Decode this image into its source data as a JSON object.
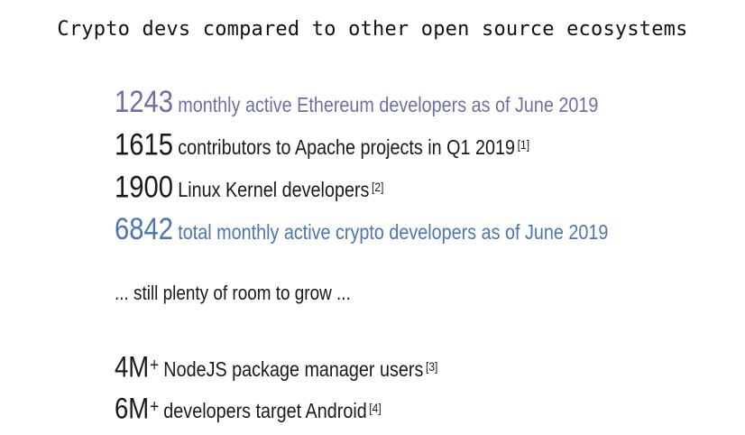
{
  "title": "Crypto devs compared to other open source ecosystems",
  "stats": [
    {
      "number": "1243",
      "text": "monthly active Ethereum developers as of June 2019",
      "ref": "",
      "color": "#6e6fa6"
    },
    {
      "number": "1615",
      "text": "contributors to Apache projects in Q1 2019",
      "ref": "[1]",
      "color": "#1a1a1a"
    },
    {
      "number": "1900",
      "text": "Linux Kernel developers",
      "ref": "[2]",
      "color": "#1a1a1a"
    },
    {
      "number": "6842",
      "text": "total monthly active crypto developers as of June 2019",
      "ref": "",
      "color": "#4b76b3"
    }
  ],
  "room_text": "... still plenty of room to grow ...",
  "stats2": [
    {
      "number": "4M",
      "plus": "+",
      "text": "NodeJS package manager users",
      "ref": "[3]"
    },
    {
      "number": "6M",
      "plus": "+",
      "text": "developers target Android",
      "ref": "[4]"
    }
  ]
}
